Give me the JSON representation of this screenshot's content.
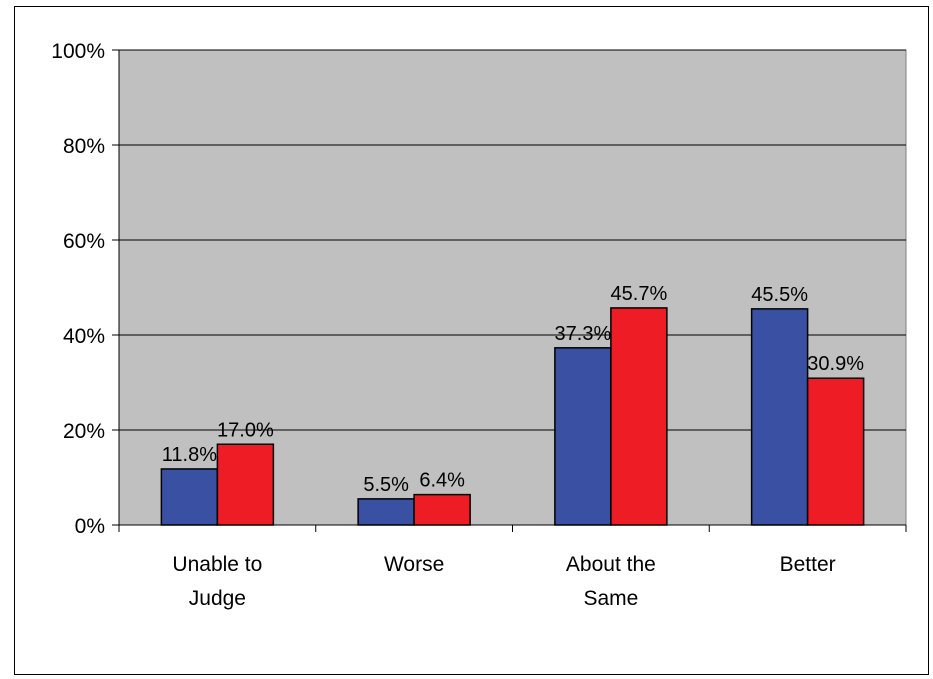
{
  "chart_data": {
    "type": "bar",
    "categories": [
      [
        "Unable to",
        "Judge"
      ],
      [
        "Worse"
      ],
      [
        "About the",
        "Same"
      ],
      [
        "Better"
      ]
    ],
    "series": [
      {
        "values": [
          11.8,
          5.5,
          37.3,
          45.5
        ],
        "labels": [
          "11.8%",
          "5.5%",
          "37.3%",
          "45.5%"
        ],
        "color": "#3a50a2"
      },
      {
        "values": [
          17.0,
          6.4,
          45.7,
          30.9
        ],
        "labels": [
          "17.0%",
          "6.4%",
          "45.7%",
          "30.9%"
        ],
        "color": "#ee1c24"
      }
    ],
    "ylim": [
      0,
      100
    ],
    "yticks": [
      0,
      20,
      40,
      60,
      80,
      100
    ],
    "ytick_labels": [
      "0%",
      "20%",
      "40%",
      "60%",
      "80%",
      "100%"
    ],
    "plot_background": "#c0c0c0",
    "grid": true,
    "legend": "none",
    "title": "",
    "xlabel": "",
    "ylabel": ""
  }
}
